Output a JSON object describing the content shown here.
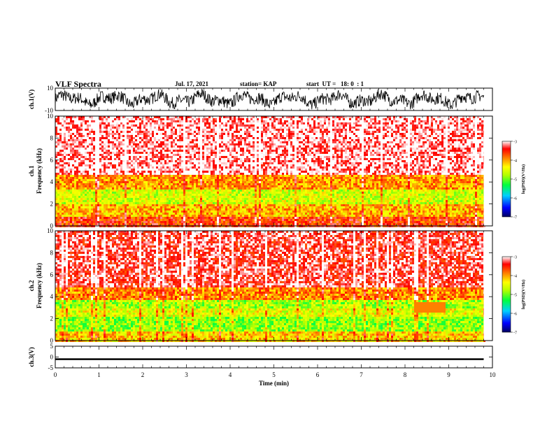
{
  "header": {
    "title": "VLF Spectra",
    "date": "Jul. 17, 2021",
    "station": "station= KAP",
    "start": "start  UT =   18: 0  : 1"
  },
  "colors": {
    "scale": [
      "#000080",
      "#0000ff",
      "#00c8ff",
      "#00ff40",
      "#a0ff00",
      "#ffff00",
      "#ff8000",
      "#ff0000",
      "#ffffff"
    ]
  },
  "chart_data": [
    {
      "type": "line",
      "ylabel": "ch.1(V)",
      "ylim": [
        -10,
        10
      ],
      "yticks": [
        "10",
        "-10"
      ],
      "xlim": [
        0,
        10
      ],
      "series_description": "dense noisy waveform oscillating roughly between -8 and 8 V",
      "x_min_sampled": [
        0,
        0.5,
        1,
        1.5,
        2,
        2.5,
        3,
        3.5,
        4,
        4.5,
        5,
        5.5,
        6,
        6.5,
        7,
        7.5,
        8,
        8.5,
        9,
        9.5,
        9.8
      ],
      "y_envelope_max": [
        8,
        7,
        8,
        6,
        8,
        7,
        8,
        7,
        6,
        8,
        7,
        8,
        7,
        8,
        7,
        8,
        8,
        7,
        8,
        8,
        7
      ],
      "y_envelope_min": [
        -8,
        -7,
        -8,
        -7,
        -8,
        -8,
        -7,
        -8,
        -7,
        -8,
        -8,
        -7,
        -8,
        -8,
        -8,
        -7,
        -8,
        -8,
        -8,
        -8,
        -8
      ]
    },
    {
      "type": "heatmap",
      "ylabel": "ch.1\nFrequency  (kHz)",
      "ylim": [
        0,
        10
      ],
      "yticks": [
        "0",
        "2",
        "4",
        "6",
        "8",
        "10"
      ],
      "xlim": [
        0,
        10
      ],
      "colorbar": {
        "label": "log(PSD)(V²/Hz)",
        "ticks": [
          "-3",
          "-4",
          "-5",
          "-6",
          "-7"
        ],
        "range": [
          -7,
          -3
        ]
      },
      "bands_khz": [
        {
          "from": 0,
          "to": 1,
          "level": -3.6
        },
        {
          "from": 1,
          "to": 2,
          "level": -4.1
        },
        {
          "from": 2,
          "to": 3.4,
          "level": -4.6
        },
        {
          "from": 3.4,
          "to": 4.8,
          "level": -4.0
        },
        {
          "from": 4.8,
          "to": 10,
          "level": -3.1
        }
      ],
      "data_end_min": 9.8
    },
    {
      "type": "heatmap",
      "ylabel": "ch.2\nFrequency  (kHz)",
      "ylim": [
        0,
        10
      ],
      "yticks": [
        "0",
        "2",
        "4",
        "6",
        "8",
        "10"
      ],
      "xlim": [
        0,
        10
      ],
      "colorbar": {
        "label": "log(PSD)(V²/Hz)",
        "ticks": [
          "-3",
          "-4",
          "-5",
          "-6",
          "-7"
        ],
        "range": [
          -7,
          -3
        ]
      },
      "bands_khz": [
        {
          "from": 0,
          "to": 1,
          "level": -4.2
        },
        {
          "from": 1,
          "to": 2.2,
          "level": -4.9
        },
        {
          "from": 2.2,
          "to": 3.0,
          "level": -4.5
        },
        {
          "from": 3.0,
          "to": 3.8,
          "level": -4.8
        },
        {
          "from": 3.8,
          "to": 5,
          "level": -3.9
        },
        {
          "from": 5,
          "to": 10,
          "level": -3.3
        }
      ],
      "data_end_min": 9.8
    },
    {
      "type": "line",
      "ylabel": "ch.3(V)",
      "ylim": [
        -5,
        5
      ],
      "yticks": [
        "5",
        "0",
        "-5"
      ],
      "xlim": [
        0,
        10
      ],
      "xlabel": "Time  (min)",
      "xticks": [
        "0",
        "1",
        "2",
        "3",
        "4",
        "5",
        "6",
        "7",
        "8",
        "9",
        "10"
      ],
      "x": [
        0,
        9.8
      ],
      "y": [
        -1,
        -1
      ],
      "band_thickness_v": 0.8
    }
  ]
}
